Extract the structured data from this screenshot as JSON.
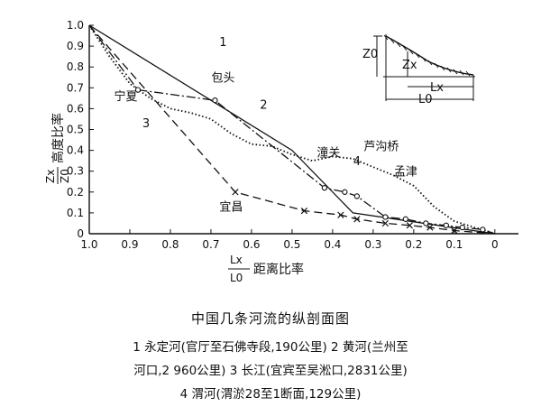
{
  "chart_data": {
    "type": "line",
    "xlabel_num": "Lx",
    "xlabel_den": "L0",
    "xlabel_text": "距离比率",
    "ylabel_num": "Zx",
    "ylabel_den": "Z0",
    "ylabel_text": "高度比率",
    "xlim": [
      1.0,
      0.0
    ],
    "ylim": [
      0.0,
      1.0
    ],
    "x_ticks": [
      "1.0",
      "0.9",
      "0.8",
      "0.7",
      "0.6",
      "0.5",
      "0.4",
      "0.3",
      "0.2",
      "0.1",
      "0"
    ],
    "y_ticks": [
      "1.0",
      "0.9",
      "0.8",
      "0.7",
      "0.6",
      "0.5",
      "0.4",
      "0.3",
      "0.2",
      "0.1",
      "0"
    ],
    "series": [
      {
        "name": "1",
        "style": "solid",
        "marker": "none",
        "x": [
          1.0,
          0.5,
          0.35,
          0.0
        ],
        "y": [
          1.0,
          0.4,
          0.1,
          0.0
        ]
      },
      {
        "name": "2",
        "style": "dotted",
        "marker": "none",
        "x": [
          1.0,
          0.95,
          0.9,
          0.85,
          0.8,
          0.75,
          0.7,
          0.65,
          0.6,
          0.55,
          0.5,
          0.45,
          0.4,
          0.35,
          0.3,
          0.25,
          0.2,
          0.15,
          0.1,
          0.05,
          0.03,
          0.0
        ],
        "y": [
          1.0,
          0.85,
          0.72,
          0.65,
          0.6,
          0.58,
          0.55,
          0.48,
          0.43,
          0.42,
          0.38,
          0.35,
          0.37,
          0.36,
          0.32,
          0.28,
          0.23,
          0.13,
          0.06,
          0.03,
          0.02,
          0.0
        ]
      },
      {
        "name": "3",
        "style": "long-dash",
        "marker": "x",
        "x": [
          1.0,
          0.64,
          0.47,
          0.38,
          0.34,
          0.27,
          0.21,
          0.16,
          0.1,
          0.0
        ],
        "y": [
          1.0,
          0.2,
          0.11,
          0.09,
          0.07,
          0.05,
          0.04,
          0.03,
          0.015,
          0.0
        ]
      },
      {
        "name": "4",
        "style": "dash-dot",
        "marker": "circle",
        "x": [
          1.0,
          0.88,
          0.69,
          0.42,
          0.37,
          0.34,
          0.27,
          0.22,
          0.17,
          0.12,
          0.08,
          0.03,
          0.0
        ],
        "y": [
          1.0,
          0.69,
          0.64,
          0.22,
          0.2,
          0.18,
          0.08,
          0.07,
          0.05,
          0.04,
          0.03,
          0.02,
          0.0
        ]
      }
    ],
    "annotations": [
      {
        "text": "宁夏",
        "x": 0.91,
        "y": 0.64
      },
      {
        "text": "包头",
        "x": 0.67,
        "y": 0.73
      },
      {
        "text": "宜昌",
        "x": 0.65,
        "y": 0.11
      },
      {
        "text": "潼关",
        "x": 0.41,
        "y": 0.37
      },
      {
        "text": "芦沟桥",
        "x": 0.28,
        "y": 0.4
      },
      {
        "text": "孟津",
        "x": 0.22,
        "y": 0.28
      },
      {
        "text": "1",
        "x": 0.67,
        "y": 0.9
      },
      {
        "text": "2",
        "x": 0.57,
        "y": 0.6
      },
      {
        "text": "3",
        "x": 0.86,
        "y": 0.51
      },
      {
        "text": "4",
        "x": 0.34,
        "y": 0.33
      }
    ],
    "inset": {
      "z_label": "Z0",
      "zx_label": "Zx",
      "lx_label": "Lx",
      "l_label": "L0"
    }
  },
  "caption": {
    "title": "中国几条河流的纵剖面图",
    "line1": "1 永定河(官厅至石佛寺段,190公里)  2 黄河(兰州至",
    "line2": "河口,2 960公里)  3 长江(宜宾至吴淞口,2831公里)",
    "line3": "4 渭河(渭淤28至1断面,129公里)"
  }
}
